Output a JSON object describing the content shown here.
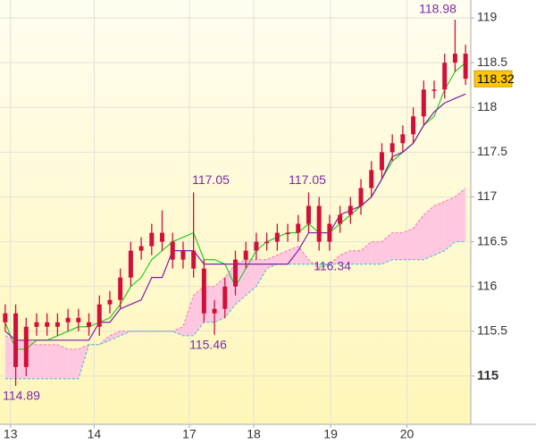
{
  "chart_data": {
    "type": "candlestick",
    "xlim": [
      -0.5,
      44.5
    ],
    "xticks": [
      {
        "value": 0.5,
        "label": "13"
      },
      {
        "value": 8.5,
        "label": "14"
      },
      {
        "value": 17.6,
        "label": "17"
      },
      {
        "value": 23.75,
        "label": "18"
      },
      {
        "value": 31.1,
        "label": "19"
      },
      {
        "value": 38.4,
        "label": "20"
      }
    ],
    "ylim": [
      114.46,
      119.2
    ],
    "yticks": [
      115,
      115.5,
      116,
      116.5,
      117,
      117.5,
      118,
      118.5,
      119
    ],
    "highlight_ytick": 115,
    "grid": true,
    "candle_color": "#d0103a",
    "open": [
      115.6,
      115.7,
      115.1,
      115.55,
      115.6,
      115.55,
      115.6,
      115.65,
      115.6,
      115.55,
      115.8,
      115.85,
      116.1,
      116.4,
      116.45,
      116.6,
      116.5,
      116.3,
      116.4,
      116.2,
      115.7,
      115.75,
      116.0,
      116.3,
      116.4,
      116.5,
      116.5,
      116.6,
      116.6,
      116.7,
      116.9,
      116.5,
      116.7,
      116.8,
      116.9,
      117.1,
      117.3,
      117.5,
      117.6,
      117.7,
      117.9,
      118.2,
      118.2,
      118.5,
      118.6
    ],
    "high": [
      115.8,
      115.8,
      115.65,
      115.7,
      115.7,
      115.7,
      115.75,
      115.75,
      115.7,
      115.9,
      115.95,
      116.2,
      116.5,
      116.55,
      116.7,
      116.85,
      116.6,
      116.5,
      117.05,
      116.3,
      115.85,
      116.1,
      116.4,
      116.5,
      116.6,
      116.6,
      116.7,
      116.7,
      116.8,
      117.05,
      117.0,
      116.8,
      116.9,
      117.0,
      117.2,
      117.4,
      117.6,
      117.7,
      117.8,
      118.0,
      118.3,
      118.3,
      118.6,
      118.98,
      118.7
    ],
    "low": [
      115.5,
      114.89,
      115.0,
      115.45,
      115.45,
      115.45,
      115.5,
      115.5,
      115.45,
      115.45,
      115.7,
      115.75,
      116.0,
      116.3,
      116.35,
      116.4,
      116.2,
      116.2,
      116.1,
      115.6,
      115.46,
      115.65,
      115.9,
      116.2,
      116.3,
      116.4,
      116.4,
      116.5,
      116.5,
      116.6,
      116.4,
      116.4,
      116.6,
      116.7,
      116.8,
      117.0,
      117.2,
      117.4,
      117.5,
      117.6,
      117.8,
      118.1,
      118.1,
      118.4,
      118.25
    ],
    "close": [
      115.7,
      115.1,
      115.55,
      115.6,
      115.55,
      115.6,
      115.65,
      115.6,
      115.55,
      115.8,
      115.85,
      116.1,
      116.4,
      116.45,
      116.6,
      116.5,
      116.3,
      116.4,
      116.2,
      115.7,
      115.75,
      116.0,
      116.3,
      116.4,
      116.5,
      116.5,
      116.6,
      116.6,
      116.7,
      116.9,
      116.5,
      116.7,
      116.8,
      116.9,
      117.1,
      117.3,
      117.5,
      117.6,
      117.7,
      117.9,
      118.2,
      118.2,
      118.5,
      118.6,
      118.32
    ],
    "lines": [
      {
        "color": "#22cc22",
        "values": [
          115.6,
          115.3,
          115.3,
          115.4,
          115.4,
          115.45,
          115.5,
          115.55,
          115.55,
          115.6,
          115.65,
          115.8,
          116.0,
          116.1,
          116.3,
          116.4,
          116.5,
          116.55,
          116.6,
          116.3,
          116.3,
          116.25,
          116.0,
          116.2,
          116.4,
          116.5,
          116.55,
          116.6,
          116.6,
          116.7,
          116.6,
          116.6,
          116.7,
          116.8,
          116.9,
          117.0,
          117.2,
          117.4,
          117.5,
          117.6,
          117.8,
          117.9,
          118.2,
          118.4,
          118.5
        ]
      },
      {
        "color": "#7a1fa8",
        "values": [
          115.5,
          115.4,
          115.4,
          115.4,
          115.4,
          115.4,
          115.4,
          115.4,
          115.4,
          115.6,
          115.6,
          115.75,
          115.8,
          115.85,
          116.1,
          116.1,
          116.4,
          116.4,
          116.4,
          116.25,
          116.25,
          116.25,
          116.25,
          116.25,
          116.25,
          116.25,
          116.25,
          116.25,
          116.4,
          116.6,
          116.6,
          116.6,
          116.8,
          116.85,
          116.9,
          117.0,
          117.2,
          117.45,
          117.5,
          117.6,
          117.8,
          117.95,
          118.05,
          118.1,
          118.15
        ]
      }
    ],
    "cloud": {
      "up_color": "#ffc8e0",
      "down_color": "#a8ec98",
      "span_a": {
        "color": "#ee88b8",
        "values": [
          115.45,
          115.4,
          115.4,
          115.35,
          115.35,
          115.35,
          115.3,
          115.3,
          115.35,
          115.35,
          115.45,
          115.5,
          115.5,
          115.5,
          115.5,
          115.5,
          115.5,
          115.55,
          115.9,
          116.0,
          116.0,
          116.1,
          116.25,
          116.3,
          116.3,
          116.3,
          116.35,
          116.4,
          116.45,
          116.3,
          116.2,
          116.25,
          116.35,
          116.4,
          116.4,
          116.5,
          116.5,
          116.6,
          116.6,
          116.65,
          116.8,
          116.9,
          116.95,
          117.0,
          117.1
        ]
      },
      "span_b": {
        "color": "#55c4d8",
        "values": [
          114.97,
          114.97,
          114.97,
          114.97,
          114.97,
          114.97,
          114.97,
          114.97,
          115.35,
          115.35,
          115.4,
          115.45,
          115.5,
          115.5,
          115.5,
          115.5,
          115.5,
          115.45,
          115.45,
          115.6,
          115.6,
          115.65,
          115.8,
          115.9,
          116.0,
          116.2,
          116.25,
          116.25,
          116.25,
          116.25,
          116.25,
          116.25,
          116.25,
          116.25,
          116.25,
          116.25,
          116.25,
          116.3,
          116.3,
          116.3,
          116.3,
          116.35,
          116.4,
          116.5,
          116.5
        ]
      }
    },
    "annotation_color": "#7a2aa8",
    "annotations": [
      {
        "value": 118.98,
        "label": "118.98"
      },
      {
        "value": 117.05,
        "label": "117.05"
      },
      {
        "value": 117.05,
        "label": "117.05"
      },
      {
        "value": 116.34,
        "label": "116.34"
      },
      {
        "value": 115.46,
        "label": "115.46"
      },
      {
        "value": 114.89,
        "label": "114.89"
      }
    ],
    "last_price": {
      "value": 118.32,
      "label": "118.32",
      "color": "#ffc800"
    }
  }
}
